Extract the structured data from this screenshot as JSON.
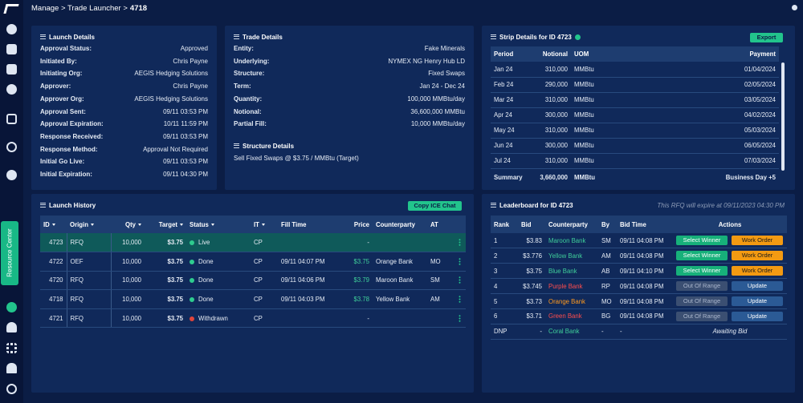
{
  "breadcrumb": {
    "path": "Manage > Trade Launcher >",
    "current": "4718"
  },
  "sidebar": {
    "resource_center": "Resource Center"
  },
  "launch_details": {
    "title": "Launch Details",
    "rows": [
      [
        "Approval Status:",
        "Approved"
      ],
      [
        "Initiated By:",
        "Chris Payne"
      ],
      [
        "Initiating Org:",
        "AEGIS Hedging Solutions"
      ],
      [
        "Approver:",
        "Chris Payne"
      ],
      [
        "Approver Org:",
        "AEGIS Hedging Solutions"
      ],
      [
        "Approval Sent:",
        "09/11 03:53 PM"
      ],
      [
        "Approval Expiration:",
        "10/11 11:59 PM"
      ],
      [
        "Response Received:",
        "09/11 03:53 PM"
      ],
      [
        "Response Method:",
        "Approval Not Required"
      ],
      [
        "Initial Go Live:",
        "09/11 03:53 PM"
      ],
      [
        "Initial Expiration:",
        "09/11 04:30 PM"
      ]
    ]
  },
  "trade_details": {
    "title": "Trade Details",
    "rows": [
      [
        "Entity:",
        "Fake Minerals"
      ],
      [
        "Underlying:",
        "NYMEX NG Henry Hub LD"
      ],
      [
        "Structure:",
        "Fixed Swaps"
      ],
      [
        "Term:",
        "Jan 24 - Dec 24"
      ],
      [
        "Quantity:",
        "100,000 MMBtu/day"
      ],
      [
        "Notional:",
        "36,600,000 MMBtu"
      ],
      [
        "Partial Fill:",
        "10,000 MMBtu/day"
      ]
    ],
    "structure_title": "Structure Details",
    "structure_text": "Sell Fixed Swaps @ $3.75 / MMBtu (Target)"
  },
  "strip": {
    "title": "Strip Details for ID 4723",
    "button": "Export",
    "columns": [
      "Period",
      "Notional",
      "UOM",
      "Payment"
    ],
    "rows": [
      [
        "Jan 24",
        "310,000",
        "MMBtu",
        "01/04/2024"
      ],
      [
        "Feb 24",
        "290,000",
        "MMBtu",
        "02/05/2024"
      ],
      [
        "Mar 24",
        "310,000",
        "MMBtu",
        "03/05/2024"
      ],
      [
        "Apr 24",
        "300,000",
        "MMBtu",
        "04/02/2024"
      ],
      [
        "May 24",
        "310,000",
        "MMBtu",
        "05/03/2024"
      ],
      [
        "Jun 24",
        "300,000",
        "MMBtu",
        "06/05/2024"
      ],
      [
        "Jul 24",
        "310,000",
        "MMBtu",
        "07/03/2024"
      ]
    ],
    "summary": [
      "Summary",
      "3,660,000",
      "MMBtu",
      "Business Day +5"
    ]
  },
  "history": {
    "title": "Launch History",
    "button": "Copy ICE Chat",
    "columns": [
      "ID",
      "Origin",
      "Qty",
      "Target",
      "Status",
      "IT",
      "Fill Time",
      "Price",
      "Counterparty",
      "AT"
    ],
    "selected_row": 0,
    "status_colors": [
      "#2ecc8f",
      "#2ecc8f",
      "#2ecc8f",
      "#2ecc8f",
      "#e0453c"
    ],
    "rows": [
      [
        "4723",
        "RFQ",
        "10,000",
        "$3.75",
        "Live",
        "CP",
        null,
        "-",
        null,
        null
      ],
      [
        "4722",
        "OEF",
        "10,000",
        "$3.75",
        "Done",
        "CP",
        "09/11 04:07 PM",
        "$3.75",
        "Orange Bank",
        "MO"
      ],
      [
        "4720",
        "RFQ",
        "10,000",
        "$3.75",
        "Done",
        "CP",
        "09/11 04:06 PM",
        "$3.79",
        "Maroon Bank",
        "SM"
      ],
      [
        "4718",
        "RFQ",
        "10,000",
        "$3.75",
        "Done",
        "CP",
        "09/11 04:03 PM",
        "$3.78",
        "Yellow Bank",
        "AM"
      ],
      [
        "4721",
        "RFQ",
        "10,000",
        "$3.75",
        "Withdrawn",
        "CP",
        null,
        "-",
        null,
        null
      ]
    ]
  },
  "leaderboard": {
    "title": "Leaderboard for ID 4723",
    "note": "This RFQ will expire at 09/11/2023 04:30 PM",
    "columns": [
      "Rank",
      "Bid",
      "Counterparty",
      "By",
      "Bid Time",
      "Actions"
    ],
    "rows": [
      [
        "1",
        "$3.83",
        "Maroon Bank",
        "SM",
        "09/11 04:08 PM"
      ],
      [
        "2",
        "$3.776",
        "Yellow Bank",
        "AM",
        "09/11 04:08 PM"
      ],
      [
        "3",
        "$3.75",
        "Blue Bank",
        "AB",
        "09/11 04:10 PM"
      ],
      [
        "4",
        "$3.745",
        "Purple Bank",
        "RP",
        "09/11 04:08 PM"
      ],
      [
        "5",
        "$3.73",
        "Orange Bank",
        "MO",
        "09/11 04:08 PM"
      ],
      [
        "6",
        "$3.71",
        "Green Bank",
        "BG",
        "09/11 04:08 PM"
      ],
      [
        "DNP",
        "-",
        "Coral Bank",
        "-",
        "-"
      ]
    ],
    "counterparty_colors": [
      "#3fcf9a",
      "#3fcf9a",
      "#3fcf9a",
      "#ff4d4d",
      "#ff9a1f",
      "#ff4d4d",
      "#3fcf9a"
    ],
    "actions": [
      [
        {
          "label": "Select Winner",
          "color": "#17b07a",
          "text": "#ffffff"
        },
        {
          "label": "Work Order",
          "color": "#f39a12",
          "text": "#1a1a1a"
        }
      ],
      [
        {
          "label": "Select Winner",
          "color": "#17b07a",
          "text": "#ffffff"
        },
        {
          "label": "Work Order",
          "color": "#f39a12",
          "text": "#1a1a1a"
        }
      ],
      [
        {
          "label": "Select Winner",
          "color": "#17b07a",
          "text": "#ffffff"
        },
        {
          "label": "Work Order",
          "color": "#f39a12",
          "text": "#1a1a1a"
        }
      ],
      [
        {
          "label": "Out Of Range",
          "color": "#3b4f72",
          "text": "#aab6cc"
        },
        {
          "label": "Update",
          "color": "#2b5a95",
          "text": "#ffffff"
        }
      ],
      [
        {
          "label": "Out Of Range",
          "color": "#3b4f72",
          "text": "#aab6cc"
        },
        {
          "label": "Update",
          "color": "#2b5a95",
          "text": "#ffffff"
        }
      ],
      [
        {
          "label": "Out Of Range",
          "color": "#3b4f72",
          "text": "#aab6cc"
        },
        {
          "label": "Update",
          "color": "#2b5a95",
          "text": "#ffffff"
        }
      ],
      null
    ],
    "status": [
      null,
      null,
      null,
      null,
      null,
      null,
      "Awaiting Bid"
    ]
  }
}
